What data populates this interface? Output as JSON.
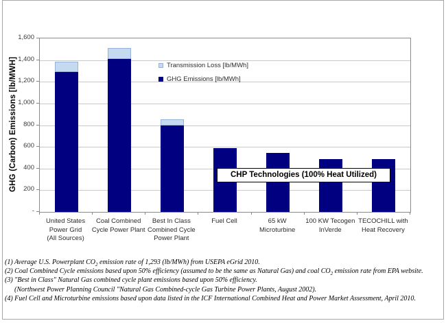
{
  "chart_data": {
    "type": "bar",
    "stacked": true,
    "title": "",
    "xlabel": "",
    "ylabel": "GHG (Carbon) Emissions [lb/MWH]",
    "ylim": [
      0,
      1600
    ],
    "ytick_interval": 200,
    "ytick_labels_top_down": [
      "1,600",
      "1,400",
      "1,200",
      "1,000",
      "800",
      "600",
      "400",
      "200",
      "-"
    ],
    "grid": true,
    "legend_position": "inside-upper-middle",
    "categories": [
      "United States Power Grid (All Sources)",
      "Coal Combined Cycle Power Plant",
      "Best In Class Combined Cycle Power Plant",
      "Fuel Cell",
      "65 kW Microturbine",
      "100 KW Tecogen InVerde",
      "TECOCHILL with Heat Recovery"
    ],
    "categories_lines": [
      [
        "United States",
        "Power Grid",
        "(All Sources)"
      ],
      [
        "Coal Combined",
        "Cycle Power Plant"
      ],
      [
        "Best In Class",
        "Combined Cycle",
        "Power Plant"
      ],
      [
        "Fuel Cell"
      ],
      [
        "65 kW",
        "Microturbine"
      ],
      [
        "100 KW Tecogen",
        "InVerde"
      ],
      [
        "TECOCHILL with",
        "Heat Recovery"
      ]
    ],
    "series": [
      {
        "name": "GHG Emissions [lb/MWh]",
        "color": "#000080",
        "border_color": "#000080",
        "values": [
          1293,
          1410,
          795,
          590,
          545,
          490,
          485
        ]
      },
      {
        "name": "Transmission Loss [lb/MWh]",
        "color": "#C5D9F1",
        "border_color": "#95B3D7",
        "values": [
          95,
          100,
          60,
          0,
          0,
          0,
          0
        ]
      }
    ],
    "annotation": "CHP Technologies (100% Heat Utilized)"
  },
  "footnotes": [
    {
      "text": "(1)  Average U.S. Powerplant CO₂ emission rate of 1,293 (lb/MWh)  from USEPA eGrid 2010.",
      "indent": false
    },
    {
      "text": "(2)  Coal Combined Cycle emissions based upon 50% efficiency (assumed to be the same as Natural Gas) and coal CO₂ emission rate from EPA website.",
      "indent": false
    },
    {
      "text": "(3)  \"Best in Class\" Natural Gas combined cycle plant emissions based upon 50% efficiency.",
      "indent": false
    },
    {
      "text": "(Northwest Power Planning Council \"Natural Gas Combined-cycle Gas Turbine Power Plants, August 2002).",
      "indent": true
    },
    {
      "text": "(4)  Fuel Cell and Microturbine emissions based upon data listed in the ICF International Combined Heat and Power Market Assessment, April 2010.",
      "indent": false
    }
  ],
  "colors": {
    "bar_navy": "#000080",
    "bar_light_blue": "#C5D9F1",
    "light_blue_border": "#95B3D7",
    "gridline": "#C9C9C9",
    "axis": "#868686",
    "frame_border": "#A6A6A6",
    "label_text": "#2B2B2B"
  }
}
